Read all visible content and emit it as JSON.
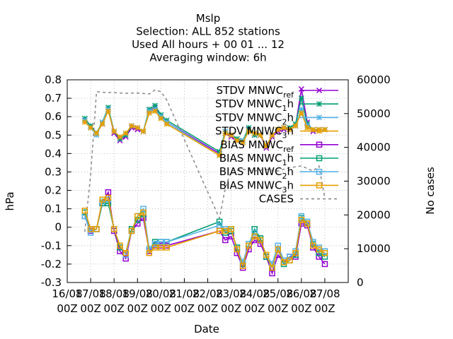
{
  "chart_data": {
    "type": "line",
    "title_lines": [
      "Mslp",
      "Selection: ALL    852 stations",
      "Used  All hours  + 00 01 ... 12",
      "Averaging window:  6h"
    ],
    "xlabel": "Date",
    "ylabel": "hPa",
    "y2label": "No cases",
    "ylim": [
      -0.3,
      0.8
    ],
    "y2lim": [
      0,
      60000
    ],
    "xlim": [
      0,
      12
    ],
    "x_unit": "days since 16/08 00Z",
    "yticks": [
      "-0.3",
      "-0.2",
      "-0.1",
      "0",
      "0.1",
      "0.2",
      "0.3",
      "0.4",
      "0.5",
      "0.6",
      "0.7",
      "0.8"
    ],
    "y2ticks": [
      "0",
      "10000",
      "20000",
      "30000",
      "40000",
      "50000",
      "60000"
    ],
    "xticks": [
      {
        "top": "16/08",
        "bottom": "00Z"
      },
      {
        "top": "17/08",
        "bottom": "00Z"
      },
      {
        "top": "18/08",
        "bottom": "00Z"
      },
      {
        "top": "19/08",
        "bottom": "00Z"
      },
      {
        "top": "20/08",
        "bottom": "00Z"
      },
      {
        "top": "21/08",
        "bottom": "00Z"
      },
      {
        "top": "22/08",
        "bottom": "00Z"
      },
      {
        "top": "23/08",
        "bottom": "00Z"
      },
      {
        "top": "24/08",
        "bottom": "00Z"
      },
      {
        "top": "25/08",
        "bottom": "00Z"
      },
      {
        "top": "26/08",
        "bottom": "00Z"
      },
      {
        "top": "27/08",
        "bottom": "00Z"
      }
    ],
    "x": [
      0.75,
      1.0,
      1.25,
      1.5,
      1.75,
      2.0,
      2.25,
      2.5,
      2.75,
      3.0,
      3.25,
      3.5,
      3.75,
      4.0,
      4.25,
      6.5,
      6.75,
      7.0,
      7.25,
      7.5,
      7.75,
      8.0,
      8.25,
      8.5,
      8.75,
      9.0,
      9.25,
      9.5,
      9.75,
      10.0,
      10.25,
      10.5,
      10.75,
      11.0
    ],
    "series": [
      {
        "name": "STDV MNWC_ref",
        "axis": "y1",
        "color": "#9400d3",
        "marker": "cross",
        "values": [
          0.58,
          0.55,
          0.51,
          0.56,
          0.64,
          0.51,
          0.47,
          0.49,
          0.54,
          0.53,
          0.52,
          0.63,
          0.65,
          0.6,
          0.57,
          0.4,
          0.51,
          0.49,
          0.47,
          0.47,
          0.53,
          0.5,
          0.5,
          0.43,
          0.49,
          0.52,
          0.53,
          0.53,
          0.55,
          0.75,
          0.57,
          0.52,
          0.53,
          0.53
        ]
      },
      {
        "name": "STDV MNWC_1h",
        "axis": "y1",
        "color": "#009e73",
        "marker": "star",
        "values": [
          0.59,
          0.55,
          0.51,
          0.57,
          0.65,
          0.52,
          0.48,
          0.5,
          0.55,
          0.54,
          0.52,
          0.64,
          0.66,
          0.61,
          0.58,
          0.41,
          0.52,
          0.5,
          0.48,
          0.47,
          0.54,
          0.5,
          0.5,
          0.44,
          0.5,
          0.53,
          0.54,
          0.54,
          0.56,
          0.7,
          0.56,
          0.53,
          0.53,
          0.53
        ]
      },
      {
        "name": "STDV MNWC_2h",
        "axis": "y1",
        "color": "#56b4e9",
        "marker": "star",
        "values": [
          0.58,
          0.54,
          0.5,
          0.57,
          0.64,
          0.52,
          0.49,
          0.51,
          0.55,
          0.54,
          0.52,
          0.63,
          0.64,
          0.6,
          0.57,
          0.39,
          0.52,
          0.5,
          0.47,
          0.47,
          0.52,
          0.51,
          0.5,
          0.44,
          0.5,
          0.53,
          0.54,
          0.53,
          0.55,
          0.64,
          0.55,
          0.53,
          0.53,
          0.53
        ]
      },
      {
        "name": "STDV MNWC_3h",
        "axis": "y1",
        "color": "#e69f00",
        "marker": "star",
        "values": [
          0.57,
          0.54,
          0.51,
          0.56,
          0.63,
          0.52,
          0.49,
          0.51,
          0.55,
          0.54,
          0.52,
          0.62,
          0.63,
          0.59,
          0.56,
          0.39,
          0.51,
          0.5,
          0.47,
          0.46,
          0.52,
          0.51,
          0.5,
          0.44,
          0.5,
          0.53,
          0.54,
          0.53,
          0.55,
          0.62,
          0.54,
          0.53,
          0.53,
          0.53
        ]
      },
      {
        "name": "BIAS MNWC_ref",
        "axis": "y1",
        "color": "#9400d3",
        "marker": "square",
        "values": [
          0.06,
          -0.02,
          -0.01,
          0.13,
          0.19,
          -0.02,
          -0.13,
          -0.17,
          -0.02,
          0.02,
          0.05,
          -0.13,
          -0.1,
          -0.1,
          -0.1,
          -0.02,
          -0.07,
          -0.05,
          -0.14,
          -0.22,
          -0.12,
          -0.07,
          -0.09,
          -0.16,
          -0.25,
          -0.15,
          -0.19,
          -0.16,
          -0.16,
          0.02,
          0.01,
          -0.11,
          -0.16,
          -0.2
        ]
      },
      {
        "name": "BIAS MNWC_1h",
        "axis": "y1",
        "color": "#009e73",
        "marker": "square",
        "values": [
          0.08,
          -0.01,
          -0.01,
          0.13,
          0.13,
          -0.01,
          -0.11,
          -0.14,
          -0.01,
          0.04,
          0.07,
          -0.12,
          -0.08,
          -0.08,
          -0.08,
          0.03,
          -0.03,
          -0.02,
          -0.11,
          -0.2,
          -0.1,
          -0.01,
          -0.06,
          -0.16,
          -0.22,
          -0.12,
          -0.2,
          -0.18,
          -0.15,
          0.05,
          0.02,
          -0.09,
          -0.14,
          -0.16
        ]
      },
      {
        "name": "BIAS MNWC_2h",
        "axis": "y1",
        "color": "#56b4e9",
        "marker": "square",
        "values": [
          0.06,
          -0.03,
          -0.01,
          0.14,
          0.15,
          -0.01,
          -0.1,
          -0.15,
          -0.02,
          0.06,
          0.1,
          -0.12,
          -0.09,
          -0.08,
          -0.08,
          0.01,
          -0.01,
          -0.01,
          -0.12,
          -0.19,
          -0.09,
          -0.03,
          -0.07,
          -0.15,
          -0.2,
          -0.1,
          -0.18,
          -0.16,
          -0.13,
          0.06,
          0.03,
          -0.08,
          -0.11,
          -0.13
        ]
      },
      {
        "name": "BIAS MNWC_3h",
        "axis": "y1",
        "color": "#e69f00",
        "marker": "square",
        "values": [
          0.09,
          -0.01,
          -0.01,
          0.15,
          0.16,
          -0.01,
          -0.1,
          -0.14,
          -0.02,
          0.06,
          0.08,
          -0.14,
          -0.11,
          -0.11,
          -0.11,
          -0.02,
          -0.02,
          -0.01,
          -0.12,
          -0.21,
          -0.1,
          -0.05,
          -0.07,
          -0.15,
          -0.22,
          -0.12,
          -0.19,
          -0.18,
          -0.14,
          0.04,
          0.02,
          -0.1,
          -0.12,
          -0.14
        ]
      },
      {
        "name": "CASES",
        "axis": "y2",
        "color": "#888888",
        "marker": "none",
        "dashed": true,
        "x": [
          0.75,
          1.0,
          1.25,
          1.5,
          2.0,
          2.5,
          3.0,
          3.5,
          3.75,
          4.0,
          4.25,
          6.5,
          6.75,
          7.0,
          7.5,
          8.0,
          8.5,
          9.0,
          9.5,
          10.0,
          10.5,
          10.75,
          11.0
        ],
        "values": [
          15000,
          32000,
          56500,
          56300,
          56200,
          56000,
          56100,
          55800,
          57000,
          56500,
          54000,
          19000,
          28000,
          33000,
          33500,
          33000,
          33500,
          33000,
          34000,
          34500,
          33000,
          34500,
          25000
        ]
      }
    ],
    "legend": [
      {
        "base": "STDV MNWC",
        "sub": "ref"
      },
      {
        "base": "STDV MNWC",
        "sub": "1",
        "tail": "h"
      },
      {
        "base": "STDV MNWC",
        "sub": "2",
        "tail": "h"
      },
      {
        "base": "STDV MNWC",
        "sub": "3",
        "tail": "h"
      },
      {
        "base": "BIAS MNWC",
        "sub": "ref"
      },
      {
        "base": "BIAS MNWC",
        "sub": "1",
        "tail": "h"
      },
      {
        "base": "BIAS MNWC",
        "sub": "2",
        "tail": "h"
      },
      {
        "base": "BIAS MNWC",
        "sub": "3",
        "tail": "h"
      },
      {
        "base": "CASES"
      }
    ],
    "legend_position": "top-right",
    "grid": true
  }
}
